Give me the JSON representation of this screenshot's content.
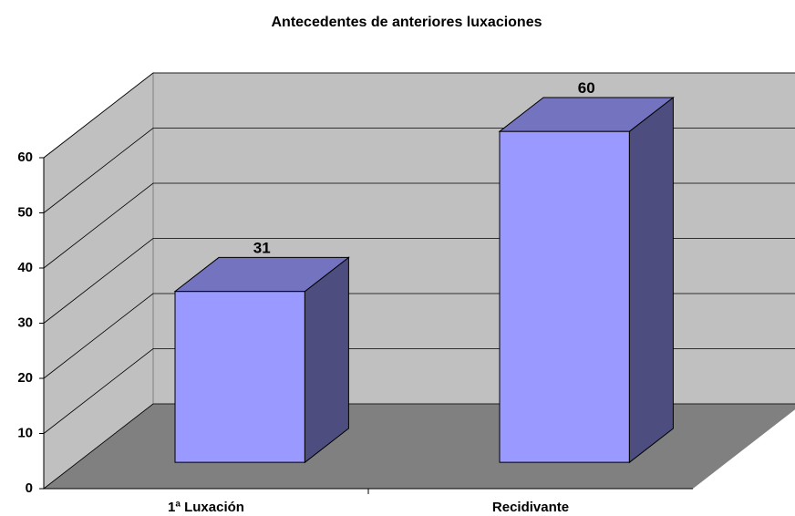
{
  "chart_data": {
    "type": "bar3d",
    "title": "Antecedentes de anteriores luxaciones",
    "categories": [
      "1ª Luxación",
      "Recidivante"
    ],
    "values": [
      31,
      60
    ],
    "color": "#9999ff",
    "ylim": [
      0,
      60
    ],
    "yticks": [
      0,
      10,
      20,
      30,
      40,
      50,
      60
    ],
    "grid": true
  }
}
